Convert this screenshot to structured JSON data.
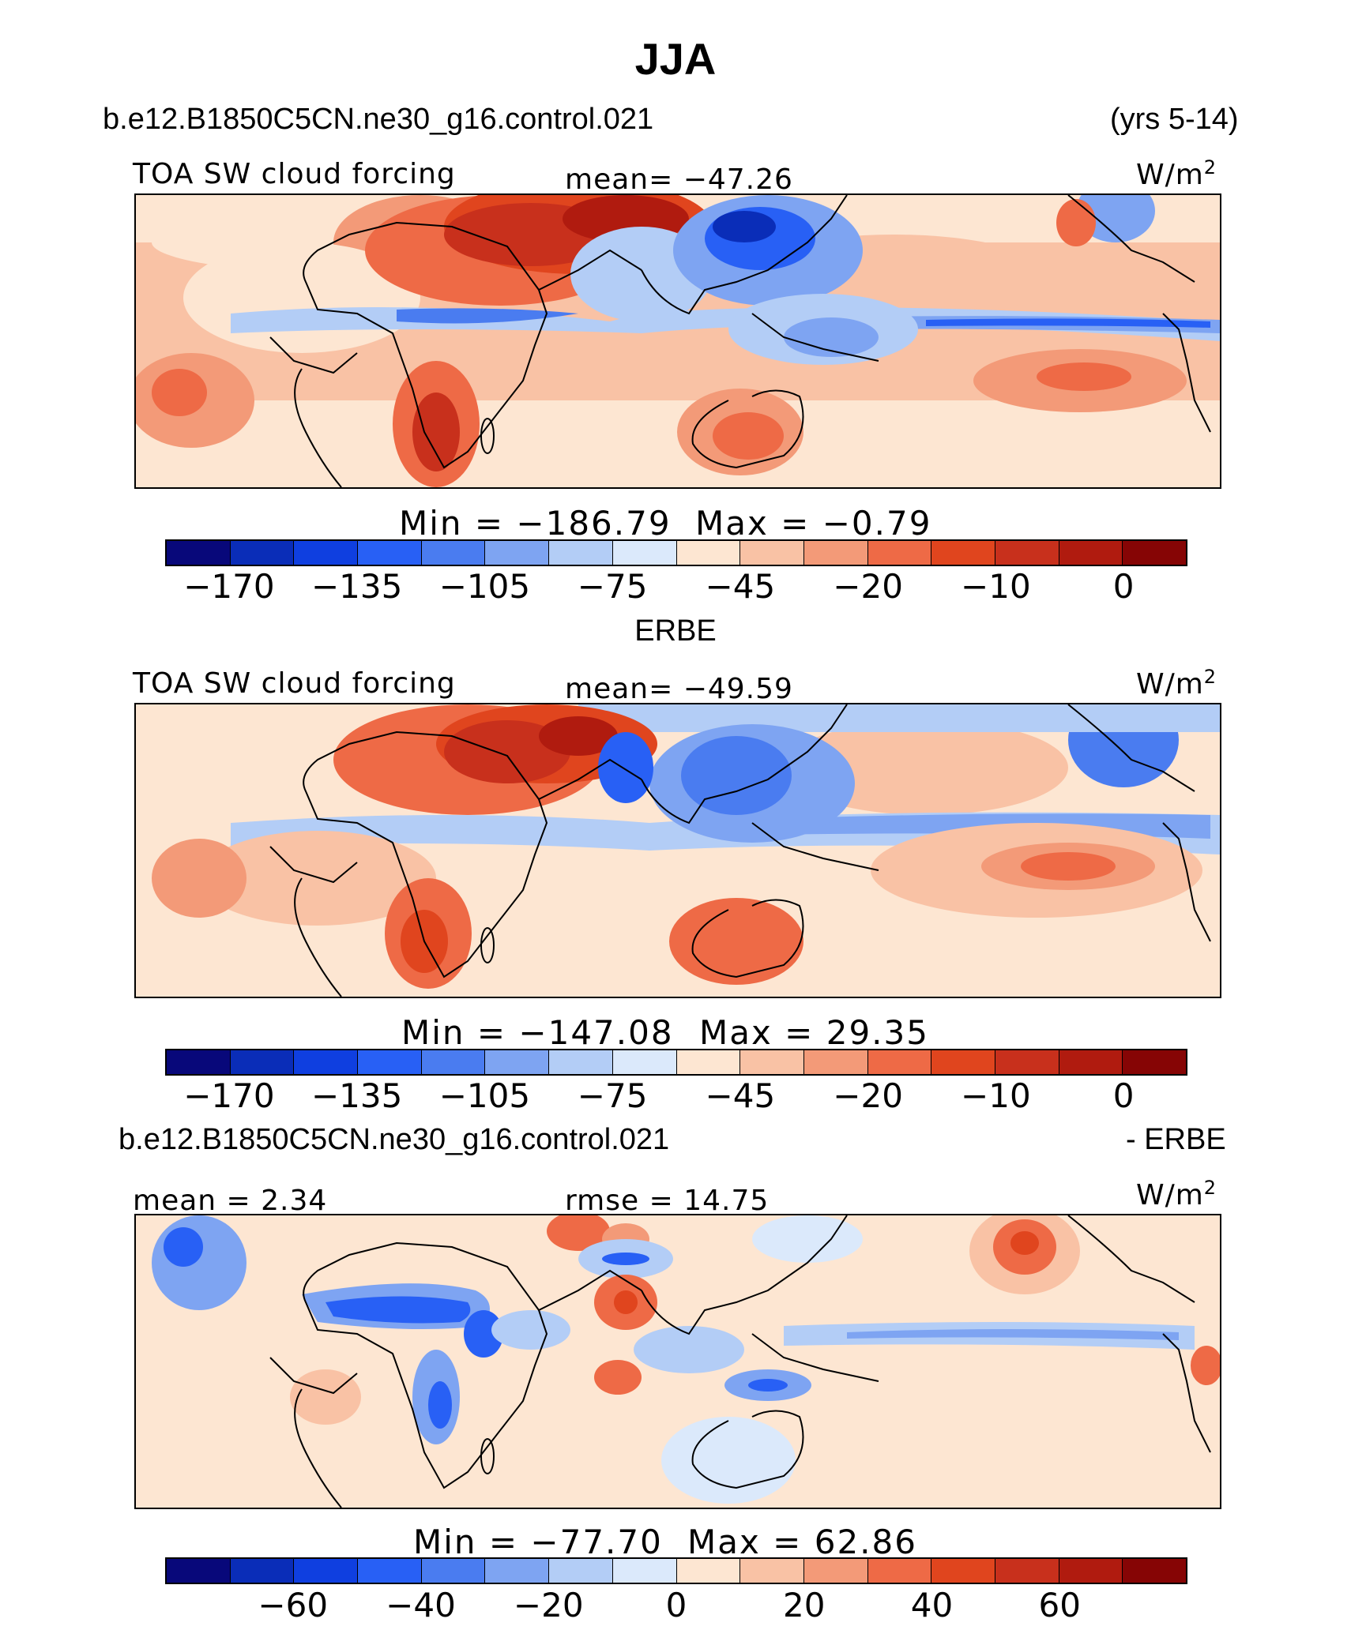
{
  "title": "JJA",
  "header": {
    "case_name": "b.e12.B1850C5CN.ne30_g16.control.021",
    "years": "(yrs 5-14)"
  },
  "panels": [
    {
      "label": "TOA SW cloud forcing",
      "stat_text": "mean= −47.26",
      "units": "W/m",
      "units_sup": "2",
      "min_label": "Min  =  −186.79",
      "max_label": "Max  =   −0.79",
      "ticks": [
        "−170",
        "−135",
        "−105",
        "−75",
        "−45",
        "−20",
        "−10",
        "0"
      ],
      "caption": "ERBE"
    },
    {
      "label": "TOA SW cloud forcing",
      "stat_text": "mean= −49.59",
      "units": "W/m",
      "units_sup": "2",
      "min_label": "Min  =  −147.08",
      "max_label": "Max  =   29.35",
      "ticks": [
        "−170",
        "−135",
        "−105",
        "−75",
        "−45",
        "−20",
        "−10",
        "0"
      ]
    },
    {
      "diff_left": "b.e12.B1850C5CN.ne30_g16.control.021",
      "diff_right": "- ERBE",
      "mean_text": "mean  =   2.34",
      "rmse_text": "rmse  =   14.75",
      "units": "W/m",
      "units_sup": "2",
      "min_label": "Min  =  −77.70",
      "max_label": "Max  =   62.86",
      "ticks": [
        "−60",
        "−40",
        "−20",
        "0",
        "20",
        "40",
        "60"
      ]
    }
  ],
  "colorbar_colors": [
    "#08087a",
    "#0a2db8",
    "#0f3fe0",
    "#2860f5",
    "#4a7cf0",
    "#7ea4f2",
    "#b3cdf6",
    "#dbe9fb",
    "#fde6d2",
    "#f9c2a5",
    "#f39a78",
    "#ee6a46",
    "#e0451e",
    "#c8301c",
    "#b01b0f",
    "#860505"
  ],
  "chart_data": [
    {
      "type": "heatmap",
      "title": "TOA SW cloud forcing",
      "subtitle": "b.e12.B1850C5CN.ne30_g16.control.021 (yrs 5-14)",
      "units": "W/m2",
      "mean": -47.26,
      "min": -186.79,
      "max": -0.79,
      "colorbar_levels": [
        -170,
        -135,
        -105,
        -75,
        -45,
        -20,
        -10,
        0
      ]
    },
    {
      "type": "heatmap",
      "title": "TOA SW cloud forcing",
      "subtitle": "ERBE",
      "units": "W/m2",
      "mean": -49.59,
      "min": -147.08,
      "max": 29.35,
      "colorbar_levels": [
        -170,
        -135,
        -105,
        -75,
        -45,
        -20,
        -10,
        0
      ]
    },
    {
      "type": "heatmap",
      "title": "b.e12.B1850C5CN.ne30_g16.control.021 - ERBE",
      "units": "W/m2",
      "mean": 2.34,
      "rmse": 14.75,
      "min": -77.7,
      "max": 62.86,
      "colorbar_levels": [
        -60,
        -40,
        -20,
        0,
        20,
        40,
        60
      ]
    }
  ]
}
